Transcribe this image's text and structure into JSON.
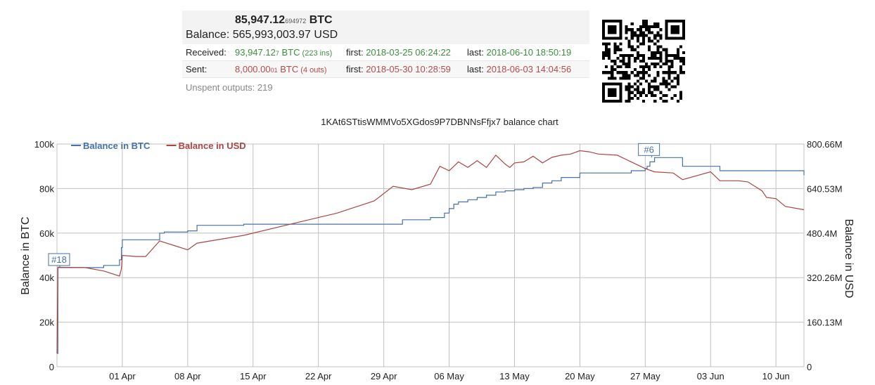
{
  "summary": {
    "balance_btc_main": "85,947.12",
    "balance_btc_small": "694972",
    "balance_btc_unit": "BTC",
    "balance_label": "Balance:",
    "balance_usd": "565,993,003.97 USD",
    "received": {
      "label": "Received:",
      "amount_main": "93,947.12",
      "amount_small": "7",
      "amount_unit": " BTC",
      "count": " (223 ins)",
      "first_label": "first:",
      "first": "2018-03-25 06:24:22",
      "last_label": "last:",
      "last": "2018-06-10 18:50:19"
    },
    "sent": {
      "label": "Sent:",
      "amount_main": "8,000.00",
      "amount_small": "01",
      "amount_unit": " BTC",
      "count": " (4 outs)",
      "first_label": "first:",
      "first": "2018-05-30 10:28:59",
      "last_label": "last:",
      "last": "2018-06-03 14:04:56"
    },
    "unspent": "Unspent outputs: 219"
  },
  "colors": {
    "btc": "#4572a7",
    "usd": "#aa4643",
    "grid": "#c0c0c0",
    "received": "#3c8f3c",
    "sent": "#b84a4a"
  },
  "chart_data": {
    "type": "line",
    "title": "1KAt6STtisWMMVo5XGdos9P7DBNNsFfjx7 balance chart",
    "ylabel": "Balance in BTC",
    "ylabel_right": "Balance in USD",
    "x_ticks": [
      "01 Apr",
      "08 Apr",
      "15 Apr",
      "22 Apr",
      "29 Apr",
      "06 May",
      "13 May",
      "20 May",
      "27 May",
      "03 Jun",
      "10 Jun"
    ],
    "x_tick_days": [
      7,
      14,
      21,
      28,
      35,
      42,
      49,
      56,
      63,
      70,
      77
    ],
    "xlim": [
      0,
      80
    ],
    "ylim": [
      0,
      100000
    ],
    "y_ticks": [
      "0",
      "20k",
      "40k",
      "60k",
      "80k",
      "100k"
    ],
    "ylim_right": [
      0,
      800660000
    ],
    "y_ticks_right": [
      "0",
      "160.13M",
      "320.26M",
      "480.4M",
      "640.53M",
      "800.66M"
    ],
    "legend": {
      "position": "top-left",
      "entries": [
        "Balance in BTC",
        "Balance in USD"
      ]
    },
    "annotations": [
      {
        "label": "#18",
        "series": "Balance in BTC",
        "x": 0.3,
        "y": 44500
      },
      {
        "label": "#6",
        "series": "Balance in BTC",
        "x": 63.7,
        "y": 93900
      }
    ],
    "series": [
      {
        "name": "Balance in BTC",
        "color": "#4572a7",
        "x": [
          0,
          0.1,
          3,
          5,
          6.7,
          6.9,
          7,
          8,
          11,
          11.5,
          14,
          15,
          20,
          30,
          36,
          37,
          37.5,
          40,
          41,
          41.5,
          42,
          42.5,
          43,
          44,
          45,
          46,
          47,
          48,
          49,
          50,
          51,
          52,
          53,
          54,
          56,
          58,
          60,
          61.5,
          63,
          63.2,
          63.5,
          64,
          67,
          71,
          80
        ],
        "y": [
          6000,
          44500,
          44500,
          45500,
          48000,
          53500,
          57000,
          57000,
          60000,
          60500,
          61000,
          63500,
          64000,
          64000,
          64000,
          66000,
          66000,
          67000,
          67000,
          69000,
          71000,
          73000,
          74000,
          75000,
          76000,
          77000,
          78500,
          79000,
          79500,
          80000,
          80500,
          82500,
          83500,
          85000,
          87000,
          87000,
          87000,
          88000,
          89000,
          90000,
          92000,
          93900,
          90000,
          88000,
          85947
        ]
      },
      {
        "name": "Balance in USD",
        "color": "#aa4643",
        "x": [
          0,
          0.1,
          3,
          5,
          6.7,
          6.9,
          7,
          8.5,
          9.5,
          11,
          14,
          15,
          20,
          25,
          30,
          34,
          36,
          38,
          40,
          41,
          42,
          43,
          44,
          45,
          46,
          47,
          48,
          48.5,
          49,
          50,
          51,
          52,
          53,
          54,
          55,
          56,
          57,
          58,
          60,
          61.5,
          63,
          64,
          66,
          67,
          70,
          71,
          73,
          74,
          75.5,
          76,
          77,
          78,
          80
        ],
        "y": [
          6000,
          44700,
          44500,
          43000,
          40700,
          44000,
          50000,
          49500,
          49500,
          56500,
          52500,
          55500,
          59000,
          64000,
          69000,
          74500,
          81000,
          79500,
          82000,
          90000,
          88000,
          92000,
          89500,
          92500,
          89500,
          95000,
          91000,
          89500,
          91500,
          92000,
          94500,
          91500,
          94000,
          95000,
          95500,
          97000,
          96500,
          95500,
          95000,
          92000,
          89000,
          87500,
          87000,
          84000,
          87500,
          83500,
          83500,
          83000,
          79000,
          76000,
          75500,
          72000,
          70500
        ]
      }
    ]
  }
}
